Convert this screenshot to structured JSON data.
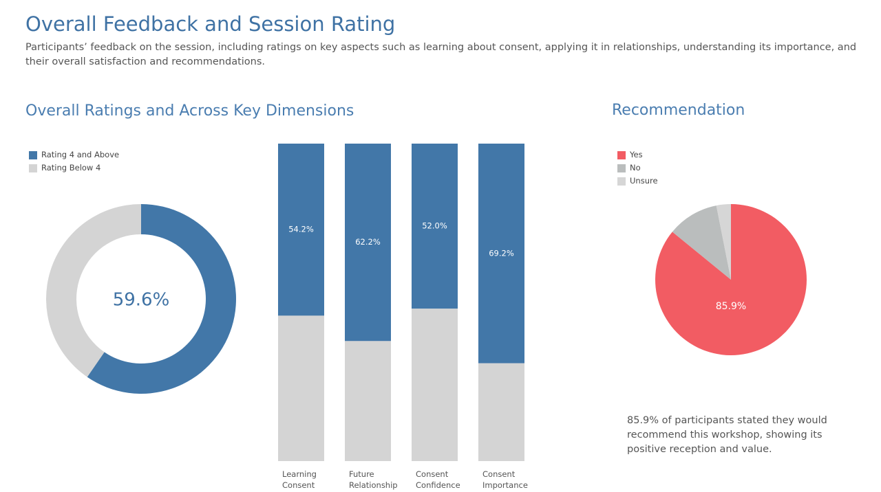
{
  "header": {
    "title": "Overall Feedback and Session Rating",
    "subtitle": "Participants’ feedback on the session, including ratings on key aspects such as learning about consent, applying it in relationships, understanding its importance, and their overall satisfaction and recommendations."
  },
  "chart_data": [
    {
      "type": "donut",
      "title": "Overall Ratings  and Across Key Dimensions",
      "labels": [
        "Rating 4 and Above",
        "Rating Below 4"
      ],
      "values": [
        59.6,
        40.4
      ],
      "colors": [
        "#4277a8",
        "#d4d4d4"
      ],
      "value_labels": [
        "59.6%",
        null
      ],
      "legend": "top-left"
    },
    {
      "type": "bar",
      "stacked": true,
      "categories": [
        "Learning Consent",
        "Future Relationship",
        "Consent Confidence",
        "Consent Importance"
      ],
      "ylim": [
        0,
        100
      ],
      "series": [
        {
          "color": "#4277a8",
          "values": [
            54.2,
            62.2,
            52.0,
            69.2
          ],
          "value_labels": [
            "54.2%",
            "62.2%",
            "52.0%",
            "69.2%"
          ]
        },
        {
          "color": "#d4d4d4",
          "values": [
            45.8,
            37.8,
            48.0,
            30.8
          ]
        }
      ]
    },
    {
      "type": "pie",
      "title": "Recommendation",
      "labels": [
        "Yes",
        "No",
        "Unsure"
      ],
      "values": [
        85.9,
        11.0,
        3.1
      ],
      "colors": [
        "#f25c63",
        "#babdbd",
        "#d6d6d6"
      ],
      "value_labels": [
        "85.9%",
        null,
        null
      ],
      "legend": "top-left",
      "annotation": "85.9% of participants stated they would recommend this workshop, showing its positive reception and value."
    }
  ]
}
